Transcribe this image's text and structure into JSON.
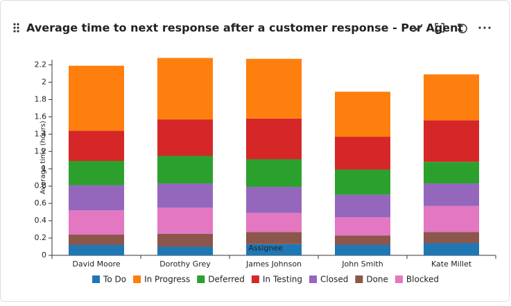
{
  "chart_data": {
    "type": "bar",
    "stacked": true,
    "title": "Average time to next response after a customer response - Per Agent",
    "x_label": "Assignee",
    "y_label": "Average time (hours)",
    "categories": [
      "David Moore",
      "Dorothy Grey",
      "James Johnson",
      "John Smith",
      "Kate Millet"
    ],
    "series": [
      {
        "name": "To Do",
        "color": "#1f77b4",
        "values": [
          0.12,
          0.1,
          0.13,
          0.12,
          0.14
        ]
      },
      {
        "name": "In Progress",
        "color": "#ff7f0e",
        "values": [
          0.75,
          0.71,
          0.69,
          0.52,
          0.53
        ]
      },
      {
        "name": "Deferred",
        "color": "#2ca02c",
        "values": [
          0.28,
          0.32,
          0.32,
          0.29,
          0.25
        ]
      },
      {
        "name": "In Testing",
        "color": "#d62728",
        "values": [
          0.35,
          0.42,
          0.47,
          0.38,
          0.48
        ]
      },
      {
        "name": "Closed",
        "color": "#9467bd",
        "values": [
          0.29,
          0.28,
          0.3,
          0.26,
          0.26
        ]
      },
      {
        "name": "Done",
        "color": "#8c564b",
        "values": [
          0.12,
          0.15,
          0.14,
          0.11,
          0.13
        ]
      },
      {
        "name": "Blocked",
        "color": "#e377c2",
        "values": [
          0.28,
          0.3,
          0.22,
          0.21,
          0.3
        ]
      }
    ],
    "ylim": [
      0,
      2.26
    ],
    "yticks": [
      0,
      0.2,
      0.4,
      0.6,
      0.8,
      1,
      1.2,
      1.4,
      1.6,
      1.8,
      2,
      2.2
    ],
    "legend": "bottom"
  }
}
